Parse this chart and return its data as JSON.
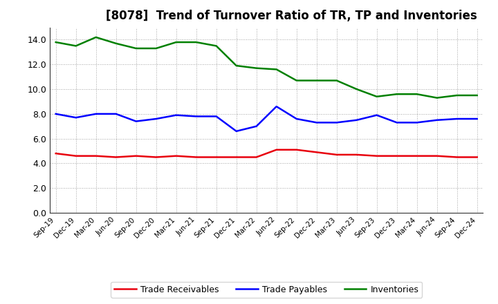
{
  "title": "[8078]  Trend of Turnover Ratio of TR, TP and Inventories",
  "title_fontsize": 12,
  "x_labels": [
    "Sep-19",
    "Dec-19",
    "Mar-20",
    "Jun-20",
    "Sep-20",
    "Dec-20",
    "Mar-21",
    "Jun-21",
    "Sep-21",
    "Dec-21",
    "Mar-22",
    "Jun-22",
    "Sep-22",
    "Dec-22",
    "Mar-23",
    "Jun-23",
    "Sep-23",
    "Dec-23",
    "Mar-24",
    "Jun-24",
    "Sep-24",
    "Dec-24"
  ],
  "trade_receivables": [
    4.8,
    4.6,
    4.6,
    4.5,
    4.6,
    4.5,
    4.6,
    4.5,
    4.5,
    4.5,
    4.5,
    5.1,
    5.1,
    4.9,
    4.7,
    4.7,
    4.6,
    4.6,
    4.6,
    4.6,
    4.5,
    4.5
  ],
  "trade_payables": [
    8.0,
    7.7,
    8.0,
    8.0,
    7.4,
    7.6,
    7.9,
    7.8,
    7.8,
    6.6,
    7.0,
    8.6,
    7.6,
    7.3,
    7.3,
    7.5,
    7.9,
    7.3,
    7.3,
    7.5,
    7.6,
    7.6
  ],
  "inventories": [
    13.8,
    13.5,
    14.2,
    13.7,
    13.3,
    13.3,
    13.8,
    13.8,
    13.5,
    11.9,
    11.7,
    11.6,
    10.7,
    10.7,
    10.7,
    10.0,
    9.4,
    9.6,
    9.6,
    9.3,
    9.5,
    9.5
  ],
  "tr_color": "#e8000d",
  "tp_color": "#0000ff",
  "inv_color": "#008000",
  "line_width": 1.8,
  "ylim": [
    0,
    15
  ],
  "yticks": [
    0.0,
    2.0,
    4.0,
    6.0,
    8.0,
    10.0,
    12.0,
    14.0
  ],
  "legend_labels": [
    "Trade Receivables",
    "Trade Payables",
    "Inventories"
  ],
  "bg_color": "#ffffff",
  "plot_bg_color": "#ffffff",
  "grid_color": "#999999",
  "fig_width": 7.2,
  "fig_height": 4.4,
  "dpi": 100
}
